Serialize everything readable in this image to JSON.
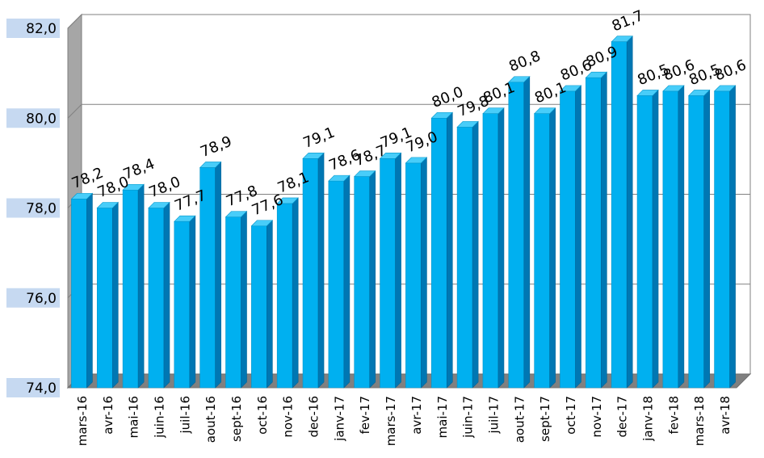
{
  "chart_data": {
    "type": "bar",
    "title": "",
    "xlabel": "",
    "ylabel": "",
    "ylim": [
      74.0,
      82.0
    ],
    "yticks": [
      "74,0",
      "76,0",
      "78,0",
      "80,0",
      "82,0"
    ],
    "grid": true,
    "legend": "none",
    "categories": [
      "mars-16",
      "avr-16",
      "mai-16",
      "juin-16",
      "juil-16",
      "aout-16",
      "sept-16",
      "oct-16",
      "nov-16",
      "dec-16",
      "janv-17",
      "fev-17",
      "mars-17",
      "avr-17",
      "mai-17",
      "juin-17",
      "juil-17",
      "aout-17",
      "sept-17",
      "oct-17",
      "nov-17",
      "dec-17",
      "janv-18",
      "fev-18",
      "mars-18",
      "avr-18"
    ],
    "values": [
      78.2,
      78.0,
      78.4,
      78.0,
      77.7,
      78.9,
      77.8,
      77.6,
      78.1,
      79.1,
      78.6,
      78.7,
      79.1,
      79.0,
      80.0,
      79.8,
      80.1,
      80.8,
      80.1,
      80.6,
      80.9,
      81.7,
      80.5,
      80.6,
      80.5,
      80.6
    ],
    "value_labels": [
      "78,2",
      "78,0",
      "78,4",
      "78,0",
      "77,7",
      "78,9",
      "77,8",
      "77,6",
      "78,1",
      "79,1",
      "78,6",
      "78,7",
      "79,1",
      "79,0",
      "80,0",
      "79,8",
      "80,1",
      "80,8",
      "80,1",
      "80,6",
      "80,9",
      "81,7",
      "80,5",
      "80,6",
      "80,5",
      "80,6"
    ],
    "colors": {
      "bar_front": "#00b0f0",
      "bar_side": "#0077b3",
      "bar_top": "#48cdf9",
      "wall": "#ffffff",
      "side_wall": "#a6a6a6",
      "floor": "#808080",
      "grid": "#808080",
      "tick_bg": "#c6d9f1"
    }
  }
}
